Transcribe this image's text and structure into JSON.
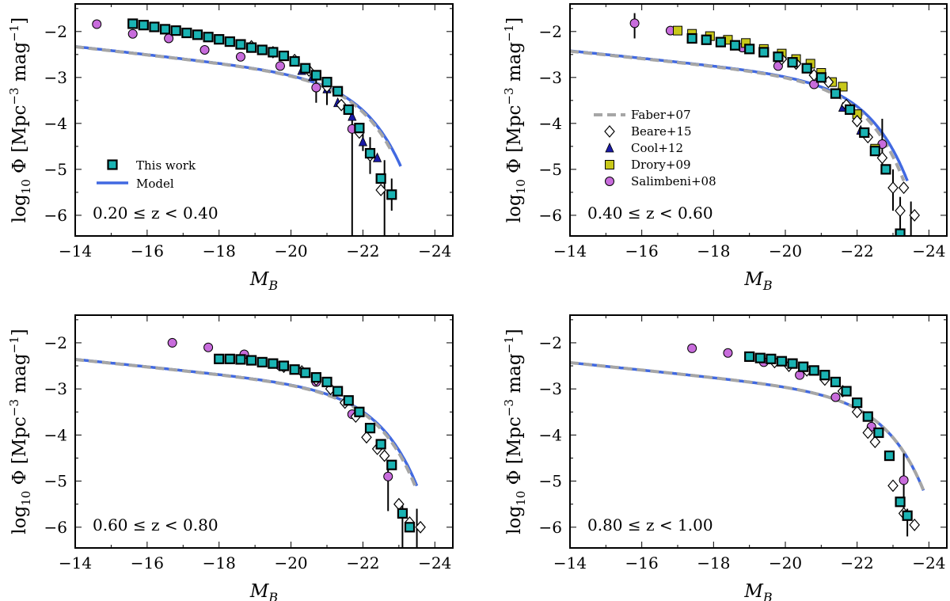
{
  "figure": {
    "xlabel": "M",
    "xlabel_sub": "B",
    "ylabel_main": "log",
    "ylabel_sub": "10",
    "ylabel_rest": " Φ [Mpc",
    "ylabel_sup1": "−3",
    "ylabel_mid": " mag",
    "ylabel_sup2": "−1",
    "ylabel_end": "]"
  },
  "colors": {
    "model": "#4169e1",
    "faber": "#a6a6a6",
    "this_work": "#1ab3b3",
    "cool": "#1a1aa6",
    "drory": "#c8c81a",
    "salimbeni": "#c86cdc",
    "beare": "#ffffff"
  },
  "legends": {
    "panel1": [
      {
        "key": "this_work",
        "label": "This work"
      },
      {
        "key": "model",
        "label": "Model"
      }
    ],
    "panel2": [
      {
        "key": "faber",
        "label": "Faber+07"
      },
      {
        "key": "beare",
        "label": "Beare+15"
      },
      {
        "key": "cool",
        "label": "Cool+12"
      },
      {
        "key": "drory",
        "label": "Drory+09"
      },
      {
        "key": "salimbeni",
        "label": "Salimbeni+08"
      }
    ]
  },
  "chart_data": [
    {
      "type": "scatter",
      "z_label": "0.20 ≤ z < 0.40",
      "xlim": [
        -14,
        -24.5
      ],
      "ylim": [
        -6.45,
        -1.4
      ],
      "xticks": [
        -14,
        -16,
        -18,
        -20,
        -22,
        -24
      ],
      "yticks": [
        -2,
        -3,
        -4,
        -5,
        -6
      ],
      "model": {
        "mstar": -21.5,
        "alpha": -1.22,
        "logphi": -2.95,
        "xend": -23.05
      },
      "faber": {
        "mstar": -21.45,
        "alpha": -1.22,
        "logphi": -2.95,
        "xend": -22.8
      },
      "series": {
        "this_work": [
          [
            -15.6,
            -1.83
          ],
          [
            -15.9,
            -1.86
          ],
          [
            -16.2,
            -1.9
          ],
          [
            -16.5,
            -1.95
          ],
          [
            -16.8,
            -1.98
          ],
          [
            -17.1,
            -2.03
          ],
          [
            -17.4,
            -2.07
          ],
          [
            -17.7,
            -2.12
          ],
          [
            -18.0,
            -2.17
          ],
          [
            -18.3,
            -2.22
          ],
          [
            -18.6,
            -2.28
          ],
          [
            -18.9,
            -2.35
          ],
          [
            -19.2,
            -2.4
          ],
          [
            -19.5,
            -2.45
          ],
          [
            -19.8,
            -2.53
          ],
          [
            -20.1,
            -2.65
          ],
          [
            -20.4,
            -2.8
          ],
          [
            -20.7,
            -2.95
          ],
          [
            -21.0,
            -3.1
          ],
          [
            -21.3,
            -3.3
          ],
          [
            -21.6,
            -3.7
          ],
          [
            -21.9,
            -4.1
          ],
          [
            -22.2,
            -4.65
          ],
          [
            -22.5,
            -5.2
          ],
          [
            -22.8,
            -5.55
          ]
        ],
        "beare": [
          [
            -18.9,
            -2.32
          ],
          [
            -19.5,
            -2.45
          ],
          [
            -20.1,
            -2.62
          ],
          [
            -20.5,
            -2.85
          ],
          [
            -21.0,
            -3.2
          ],
          [
            -21.4,
            -3.6
          ],
          [
            -21.9,
            -4.2
          ],
          [
            -22.2,
            -4.7
          ],
          [
            -22.5,
            -5.45
          ]
        ],
        "cool": [
          [
            -20.3,
            -2.85
          ],
          [
            -20.6,
            -2.98
          ],
          [
            -21.0,
            -3.25
          ],
          [
            -21.3,
            -3.55
          ],
          [
            -21.7,
            -3.85
          ],
          [
            -22.0,
            -4.4
          ],
          [
            -22.4,
            -4.75
          ]
        ],
        "drory": [],
        "salimbeni": [
          [
            -14.6,
            -1.84
          ],
          [
            -15.6,
            -2.05
          ],
          [
            -16.6,
            -2.15
          ],
          [
            -17.6,
            -2.4
          ],
          [
            -18.6,
            -2.55
          ],
          [
            -19.7,
            -2.75
          ],
          [
            -20.7,
            -3.22
          ],
          [
            -21.7,
            -4.12
          ]
        ]
      },
      "errorbars": [
        [
          -20.7,
          -3.55,
          -3.0
        ],
        [
          -21.0,
          -3.6,
          -3.2
        ],
        [
          -21.7,
          -6.5,
          -3.8
        ],
        [
          -22.0,
          -4.6,
          -4.2
        ],
        [
          -22.2,
          -5.1,
          -4.3
        ],
        [
          -22.6,
          -6.5,
          -4.8
        ],
        [
          -22.8,
          -5.9,
          -5.2
        ]
      ]
    },
    {
      "type": "scatter",
      "z_label": "0.40 ≤ z < 0.60",
      "xlim": [
        -14,
        -24.5
      ],
      "ylim": [
        -6.45,
        -1.4
      ],
      "xticks": [
        -14,
        -16,
        -18,
        -20,
        -22,
        -24
      ],
      "yticks": [
        -2,
        -3,
        -4,
        -5,
        -6
      ],
      "model": {
        "mstar": -21.7,
        "alpha": -1.2,
        "logphi": -3.0,
        "xend": -23.4
      },
      "faber": {
        "mstar": -21.6,
        "alpha": -1.2,
        "logphi": -3.0,
        "xend": -23.3
      },
      "series": {
        "this_work": [
          [
            -17.4,
            -2.15
          ],
          [
            -17.8,
            -2.18
          ],
          [
            -18.2,
            -2.23
          ],
          [
            -18.6,
            -2.3
          ],
          [
            -19.0,
            -2.38
          ],
          [
            -19.4,
            -2.45
          ],
          [
            -19.8,
            -2.55
          ],
          [
            -20.2,
            -2.67
          ],
          [
            -20.6,
            -2.8
          ],
          [
            -21.0,
            -3.0
          ],
          [
            -21.4,
            -3.35
          ],
          [
            -21.8,
            -3.7
          ],
          [
            -22.2,
            -4.2
          ],
          [
            -22.5,
            -4.6
          ],
          [
            -22.8,
            -5.0
          ],
          [
            -23.2,
            -6.4
          ]
        ],
        "beare": [
          [
            -19.9,
            -2.6
          ],
          [
            -20.3,
            -2.7
          ],
          [
            -20.8,
            -2.95
          ],
          [
            -21.2,
            -3.1
          ],
          [
            -21.7,
            -3.6
          ],
          [
            -22.0,
            -3.95
          ],
          [
            -22.3,
            -4.3
          ],
          [
            -22.7,
            -4.75
          ],
          [
            -23.0,
            -5.4
          ],
          [
            -23.2,
            -5.9
          ],
          [
            -23.6,
            -6.0
          ],
          [
            -23.3,
            -5.4
          ]
        ],
        "cool": [
          [
            -21.6,
            -3.65
          ],
          [
            -22.1,
            -4.15
          ]
        ],
        "drory": [
          [
            -17.0,
            -1.98
          ],
          [
            -17.4,
            -2.05
          ],
          [
            -17.9,
            -2.1
          ],
          [
            -18.4,
            -2.18
          ],
          [
            -18.9,
            -2.25
          ],
          [
            -19.4,
            -2.38
          ],
          [
            -19.9,
            -2.48
          ],
          [
            -20.3,
            -2.6
          ],
          [
            -20.7,
            -2.7
          ],
          [
            -21.0,
            -2.9
          ],
          [
            -21.3,
            -3.1
          ],
          [
            -21.6,
            -3.2
          ],
          [
            -22.0,
            -3.8
          ],
          [
            -22.5,
            -4.55
          ]
        ],
        "salimbeni": [
          [
            -15.8,
            -1.82
          ],
          [
            -16.8,
            -1.98
          ],
          [
            -18.8,
            -2.35
          ],
          [
            -19.8,
            -2.75
          ],
          [
            -20.8,
            -3.15
          ],
          [
            -22.7,
            -4.45
          ]
        ]
      },
      "errorbars": [
        [
          -15.8,
          -2.15,
          -1.6
        ],
        [
          -22.7,
          -5.1,
          -3.9
        ],
        [
          -23.0,
          -5.9,
          -5.0
        ],
        [
          -23.2,
          -6.5,
          -5.6
        ],
        [
          -23.5,
          -6.5,
          -5.7
        ]
      ]
    },
    {
      "type": "scatter",
      "z_label": "0.60 ≤ z < 0.80",
      "xlim": [
        -14,
        -24.5
      ],
      "ylim": [
        -6.45,
        -1.4
      ],
      "xticks": [
        -14,
        -16,
        -18,
        -20,
        -22,
        -24
      ],
      "yticks": [
        -2,
        -3,
        -4,
        -5,
        -6
      ],
      "model": {
        "mstar": -21.85,
        "alpha": -1.2,
        "logphi": -2.95,
        "xend": -23.5
      },
      "faber": {
        "mstar": -21.8,
        "alpha": -1.2,
        "logphi": -2.95,
        "xend": -23.45
      },
      "series": {
        "this_work": [
          [
            -18.0,
            -2.35
          ],
          [
            -18.3,
            -2.35
          ],
          [
            -18.6,
            -2.36
          ],
          [
            -18.9,
            -2.38
          ],
          [
            -19.2,
            -2.42
          ],
          [
            -19.5,
            -2.45
          ],
          [
            -19.8,
            -2.5
          ],
          [
            -20.1,
            -2.58
          ],
          [
            -20.4,
            -2.65
          ],
          [
            -20.7,
            -2.75
          ],
          [
            -21.0,
            -2.85
          ],
          [
            -21.3,
            -3.05
          ],
          [
            -21.6,
            -3.25
          ],
          [
            -21.9,
            -3.5
          ],
          [
            -22.2,
            -3.85
          ],
          [
            -22.5,
            -4.2
          ],
          [
            -22.8,
            -4.65
          ],
          [
            -23.1,
            -5.7
          ],
          [
            -23.3,
            -6.0
          ]
        ],
        "beare": [
          [
            -19.8,
            -2.52
          ],
          [
            -20.3,
            -2.62
          ],
          [
            -20.7,
            -2.8
          ],
          [
            -21.1,
            -3.0
          ],
          [
            -21.5,
            -3.3
          ],
          [
            -21.8,
            -3.6
          ],
          [
            -22.1,
            -4.05
          ],
          [
            -22.4,
            -4.3
          ],
          [
            -22.6,
            -4.45
          ],
          [
            -23.0,
            -5.5
          ],
          [
            -23.3,
            -5.9
          ],
          [
            -23.6,
            -6.0
          ]
        ],
        "cool": [],
        "drory": [],
        "salimbeni": [
          [
            -16.7,
            -2.0
          ],
          [
            -17.7,
            -2.1
          ],
          [
            -18.7,
            -2.25
          ],
          [
            -19.7,
            -2.5
          ],
          [
            -20.7,
            -2.85
          ],
          [
            -21.7,
            -3.55
          ],
          [
            -22.7,
            -4.9
          ]
        ]
      },
      "errorbars": [
        [
          -16.7,
          -2.1,
          -1.95
        ],
        [
          -22.7,
          -5.65,
          -4.6
        ],
        [
          -23.1,
          -6.5,
          -5.5
        ],
        [
          -23.5,
          -6.5,
          -5.6
        ]
      ]
    },
    {
      "type": "scatter",
      "z_label": "0.80 ≤ z < 1.00",
      "xlim": [
        -14,
        -24.5
      ],
      "ylim": [
        -6.45,
        -1.4
      ],
      "xticks": [
        -14,
        -16,
        -18,
        -20,
        -22,
        -24
      ],
      "yticks": [
        -2,
        -3,
        -4,
        -5,
        -6
      ],
      "model": {
        "mstar": -22.2,
        "alpha": -1.2,
        "logphi": -3.05,
        "xend": -23.85
      },
      "faber": {
        "mstar": -22.2,
        "alpha": -1.2,
        "logphi": -3.05,
        "xend": -23.85
      },
      "series": {
        "this_work": [
          [
            -19.0,
            -2.3
          ],
          [
            -19.3,
            -2.33
          ],
          [
            -19.6,
            -2.35
          ],
          [
            -19.9,
            -2.4
          ],
          [
            -20.2,
            -2.45
          ],
          [
            -20.5,
            -2.52
          ],
          [
            -20.8,
            -2.6
          ],
          [
            -21.1,
            -2.7
          ],
          [
            -21.4,
            -2.85
          ],
          [
            -21.7,
            -3.05
          ],
          [
            -22.0,
            -3.3
          ],
          [
            -22.3,
            -3.6
          ],
          [
            -22.6,
            -3.95
          ],
          [
            -22.9,
            -4.45
          ],
          [
            -23.2,
            -5.45
          ],
          [
            -23.4,
            -5.75
          ]
        ],
        "beare": [
          [
            -19.7,
            -2.42
          ],
          [
            -20.1,
            -2.5
          ],
          [
            -20.6,
            -2.6
          ],
          [
            -21.1,
            -2.8
          ],
          [
            -21.6,
            -3.05
          ],
          [
            -22.0,
            -3.5
          ],
          [
            -22.3,
            -3.95
          ],
          [
            -22.5,
            -4.15
          ],
          [
            -23.0,
            -5.1
          ],
          [
            -23.3,
            -5.7
          ],
          [
            -23.6,
            -5.95
          ]
        ],
        "cool": [],
        "drory": [],
        "salimbeni": [
          [
            -17.4,
            -2.12
          ],
          [
            -18.4,
            -2.22
          ],
          [
            -19.4,
            -2.42
          ],
          [
            -20.4,
            -2.7
          ],
          [
            -21.4,
            -3.18
          ],
          [
            -22.4,
            -3.82
          ],
          [
            -23.3,
            -4.98
          ]
        ]
      },
      "errorbars": [
        [
          -23.3,
          -5.6,
          -4.4
        ],
        [
          -23.4,
          -6.2,
          -5.6
        ]
      ]
    }
  ]
}
